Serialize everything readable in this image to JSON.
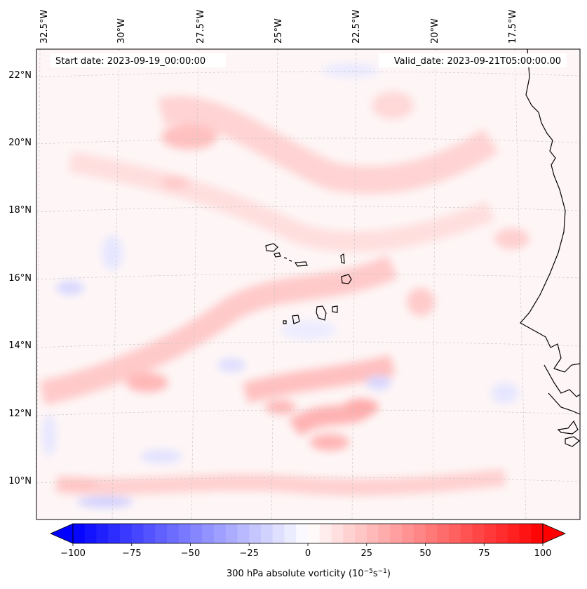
{
  "header": {
    "start_label": "Start date: 2023-09-19_00:00:00",
    "valid_label": "Valid_date: 2023-09-21T05:00:00.00"
  },
  "map": {
    "projection": "lambert-conformal",
    "lon_labels": [
      "32.5°W",
      "30°W",
      "27.5°W",
      "25°W",
      "22.5°W",
      "20°W",
      "17.5°W"
    ],
    "lat_labels": [
      "22°N",
      "20°N",
      "18°N",
      "16°N",
      "14°N",
      "12°N",
      "10°N"
    ],
    "grid": "dashed-gray",
    "field_colors": {
      "positive": "#ff0000",
      "negative": "#0000ff",
      "zero": "#ffffff"
    }
  },
  "colorbar": {
    "tick_labels": [
      "−100",
      "−75",
      "−50",
      "−25",
      "0",
      "25",
      "50",
      "75",
      "100"
    ],
    "min": -100,
    "max": 100,
    "label_main": "300 hPa absolute vorticity (10",
    "label_sup1": "−5",
    "label_mid": "s",
    "label_sup2": "−1",
    "label_end": ")"
  }
}
